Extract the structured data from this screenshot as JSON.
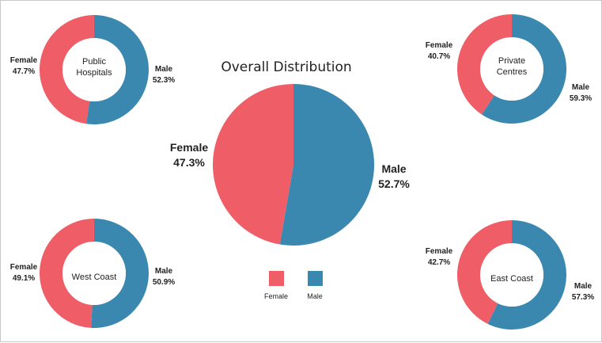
{
  "colors": {
    "female": "#ef5d66",
    "male": "#3a87b0",
    "background": "#ffffff"
  },
  "chart_data": [
    {
      "type": "pie",
      "id": "overall",
      "title": "Overall Distribution",
      "categories": [
        "Female",
        "Male"
      ],
      "values": [
        47.3,
        52.7
      ],
      "labels": [
        "47.3%",
        "52.7%"
      ]
    },
    {
      "type": "donut",
      "id": "public",
      "center_label": [
        "Public",
        "Hospitals"
      ],
      "categories": [
        "Female",
        "Male"
      ],
      "values": [
        47.7,
        52.3
      ],
      "labels": [
        "47.7%",
        "52.3%"
      ]
    },
    {
      "type": "donut",
      "id": "private",
      "center_label": [
        "Private",
        "Centres"
      ],
      "categories": [
        "Female",
        "Male"
      ],
      "values": [
        40.7,
        59.3
      ],
      "labels": [
        "40.7%",
        "59.3%"
      ]
    },
    {
      "type": "donut",
      "id": "west",
      "center_label": [
        "West Coast"
      ],
      "categories": [
        "Female",
        "Male"
      ],
      "values": [
        49.1,
        50.9
      ],
      "labels": [
        "49.1%",
        "50.9%"
      ]
    },
    {
      "type": "donut",
      "id": "east",
      "center_label": [
        "East Coast"
      ],
      "categories": [
        "Female",
        "Male"
      ],
      "values": [
        42.7,
        57.3
      ],
      "labels": [
        "42.7%",
        "57.3%"
      ]
    }
  ],
  "legend": {
    "items": [
      {
        "label": "Female",
        "color_key": "female"
      },
      {
        "label": "Male",
        "color_key": "male"
      }
    ]
  }
}
